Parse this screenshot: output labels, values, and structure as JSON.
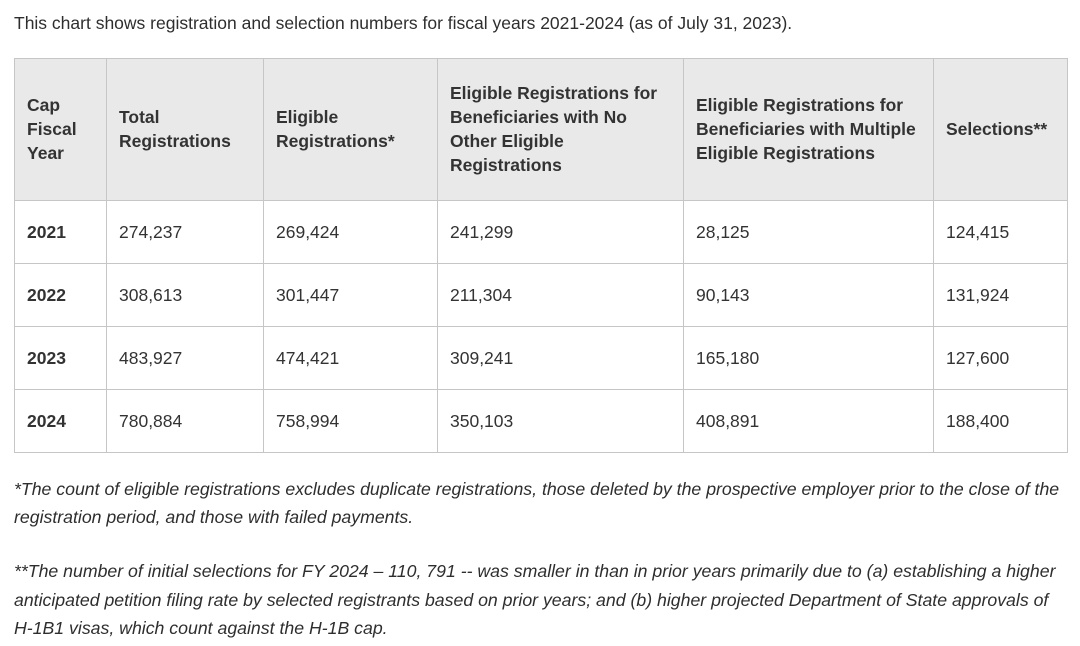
{
  "intro": "This chart shows registration and selection numbers for fiscal years 2021-2024 (as of July 31, 2023).",
  "table": {
    "headers": [
      "Cap Fiscal Year",
      "Total Registrations",
      "Eligible Registrations*",
      "Eligible Registrations for Beneficiaries with No Other Eligible Registrations",
      "Eligible Registrations for Beneficiaries with Multiple Eligible Registrations",
      "Selections**"
    ],
    "rows": [
      [
        "2021",
        "274,237",
        "269,424",
        "241,299",
        "28,125",
        "124,415"
      ],
      [
        "2022",
        "308,613",
        "301,447",
        "211,304",
        "90,143",
        "131,924"
      ],
      [
        "2023",
        "483,927",
        "474,421",
        "309,241",
        "165,180",
        "127,600"
      ],
      [
        "2024",
        "780,884",
        "758,994",
        "350,103",
        "408,891",
        "188,400"
      ]
    ]
  },
  "footnotes": [
    "*The count of eligible registrations excludes duplicate registrations, those deleted by the prospective employer prior to the close of the registration period, and those with failed payments.",
    "**The number of initial selections for FY 2024 – 110, 791 -- was smaller in than in prior years primarily due to (a) establishing a higher anticipated petition filing rate by selected registrants based on prior years; and (b) higher projected Department of State approvals of H-1B1 visas, which count against the H-1B cap."
  ],
  "colors": {
    "header_background": "#e9e9e9",
    "border": "#c6c6c6",
    "text": "#333333"
  },
  "chart_data": {
    "type": "table",
    "title": "This chart shows registration and selection numbers for fiscal years 2021-2024 (as of July 31, 2023).",
    "categories": [
      "2021",
      "2022",
      "2023",
      "2024"
    ],
    "series": [
      {
        "name": "Total Registrations",
        "values": [
          274237,
          308613,
          483927,
          780884
        ]
      },
      {
        "name": "Eligible Registrations*",
        "values": [
          269424,
          301447,
          474421,
          758994
        ]
      },
      {
        "name": "Eligible Registrations for Beneficiaries with No Other Eligible Registrations",
        "values": [
          241299,
          211304,
          309241,
          350103
        ]
      },
      {
        "name": "Eligible Registrations for Beneficiaries with Multiple Eligible Registrations",
        "values": [
          28125,
          90143,
          165180,
          408891
        ]
      },
      {
        "name": "Selections**",
        "values": [
          124415,
          131924,
          127600,
          188400
        ]
      }
    ],
    "footnotes": [
      "*The count of eligible registrations excludes duplicate registrations, those deleted by the prospective employer prior to the close of the registration period, and those with failed payments.",
      "**The number of initial selections for FY 2024 – 110, 791 -- was smaller in than in prior years primarily due to (a) establishing a higher anticipated petition filing rate by selected registrants based on prior years; and (b) higher projected Department of State approvals of H-1B1 visas, which count against the H-1B cap."
    ]
  }
}
